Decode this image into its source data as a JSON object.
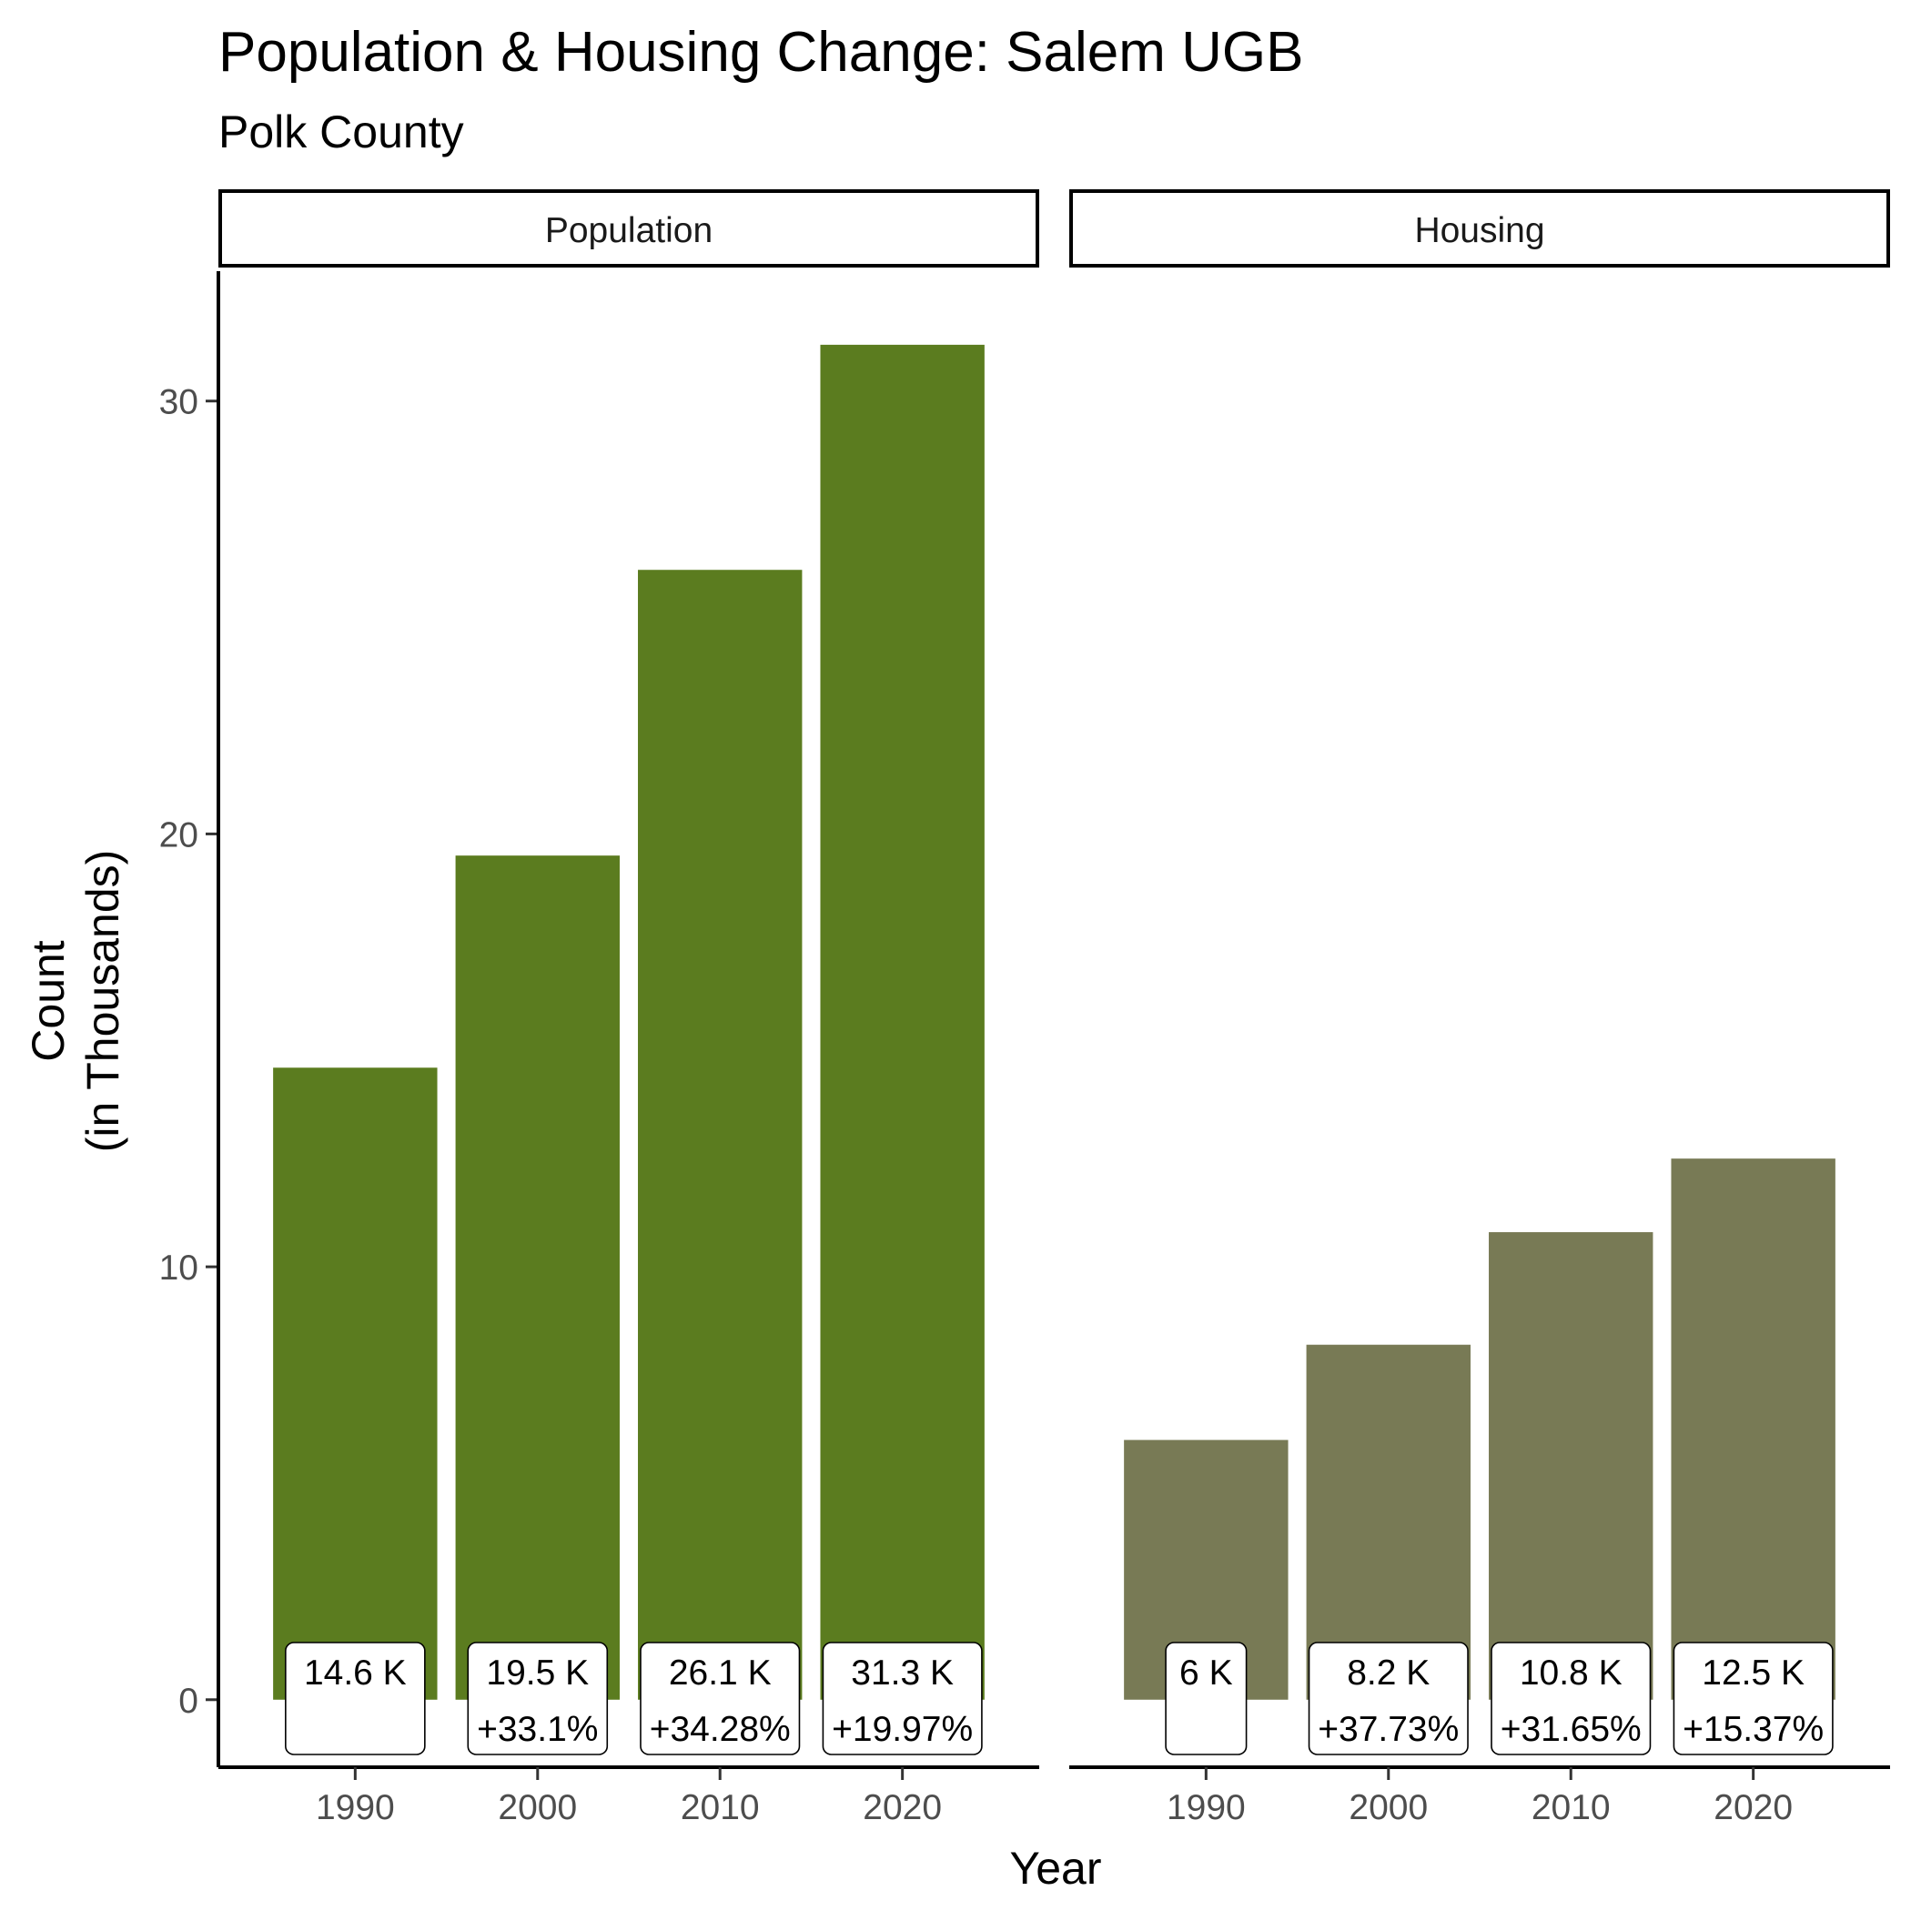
{
  "title": "Population & Housing Change: Salem UGB",
  "subtitle": "Polk County",
  "chart_data": {
    "type": "bar",
    "xlabel": "Year",
    "ylabel_lines": [
      "Count",
      "(in Thousands)"
    ],
    "ylim": [
      -1.56,
      33
    ],
    "yticks": [
      0,
      10,
      20,
      30
    ],
    "categories": [
      "1990",
      "2000",
      "2010",
      "2020"
    ],
    "grid": false,
    "legend": "none",
    "panels": [
      {
        "strip": "Population",
        "color": "#5b7c1f",
        "values": [
          14.6,
          19.5,
          26.1,
          31.3
        ],
        "labels": [
          "14.6 K",
          "19.5 K",
          "26.1 K",
          "31.3 K"
        ],
        "changes": [
          "",
          "+33.1%",
          "+34.28%",
          "+19.97%"
        ]
      },
      {
        "strip": "Housing",
        "color": "#787a55",
        "values": [
          6.0,
          8.2,
          10.8,
          12.5
        ],
        "labels": [
          "6 K",
          "8.2 K",
          "10.8 K",
          "12.5 K"
        ],
        "changes": [
          "",
          "+37.73%",
          "+31.65%",
          "+15.37%"
        ]
      }
    ]
  }
}
